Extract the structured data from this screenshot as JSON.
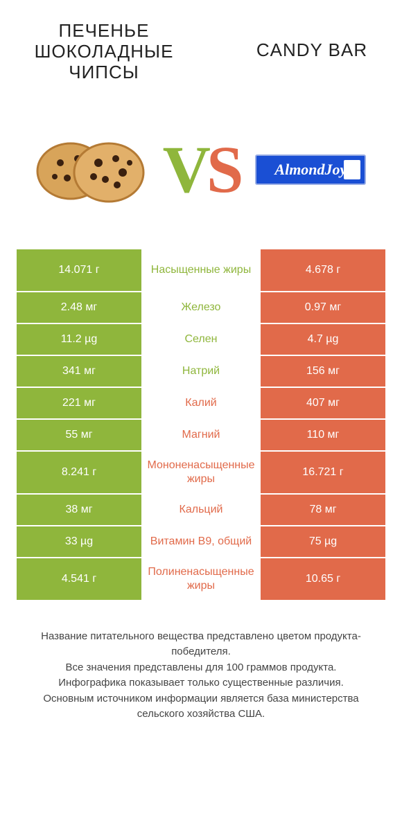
{
  "titles": {
    "left": "ПЕЧЕНЬЕ ШОКОЛАДНЫЕ ЧИПСЫ",
    "right": "CANDY BAR"
  },
  "colors": {
    "green": "#8fb63c",
    "orange": "#e16a4a",
    "white": "#ffffff",
    "cookie_body": "#d8a45a",
    "cookie_edge": "#b47a34",
    "chip": "#3a200f",
    "candy_bg": "#1a4fd4",
    "candy_border": "#9aaee5"
  },
  "vs": {
    "v": "V",
    "s": "S"
  },
  "candy": {
    "logo": "AlmondJoy"
  },
  "rows": [
    {
      "left": "14.071 г",
      "label": "Насыщенные жиры",
      "right": "4.678 г",
      "winner": "left",
      "tall": true
    },
    {
      "left": "2.48 мг",
      "label": "Железо",
      "right": "0.97 мг",
      "winner": "left",
      "tall": false
    },
    {
      "left": "11.2 µg",
      "label": "Селен",
      "right": "4.7 µg",
      "winner": "left",
      "tall": false
    },
    {
      "left": "341 мг",
      "label": "Натрий",
      "right": "156 мг",
      "winner": "left",
      "tall": false
    },
    {
      "left": "221 мг",
      "label": "Калий",
      "right": "407 мг",
      "winner": "right",
      "tall": false
    },
    {
      "left": "55 мг",
      "label": "Магний",
      "right": "110 мг",
      "winner": "right",
      "tall": false
    },
    {
      "left": "8.241 г",
      "label": "Мононенасыщенные жиры",
      "right": "16.721 г",
      "winner": "right",
      "tall": true
    },
    {
      "left": "38 мг",
      "label": "Кальций",
      "right": "78 мг",
      "winner": "right",
      "tall": false
    },
    {
      "left": "33 µg",
      "label": "Витамин B9, общий",
      "right": "75 µg",
      "winner": "right",
      "tall": false
    },
    {
      "left": "4.541 г",
      "label": "Полиненасыщенные жиры",
      "right": "10.65 г",
      "winner": "right",
      "tall": true
    }
  ],
  "note": {
    "l1": "Название питательного вещества представлено цветом продукта-победителя.",
    "l2": "Все значения представлены для 100 граммов продукта.",
    "l3": "Инфографика показывает только существенные различия.",
    "l4": "Основным источником информации является база министерства сельского хозяйства США."
  }
}
